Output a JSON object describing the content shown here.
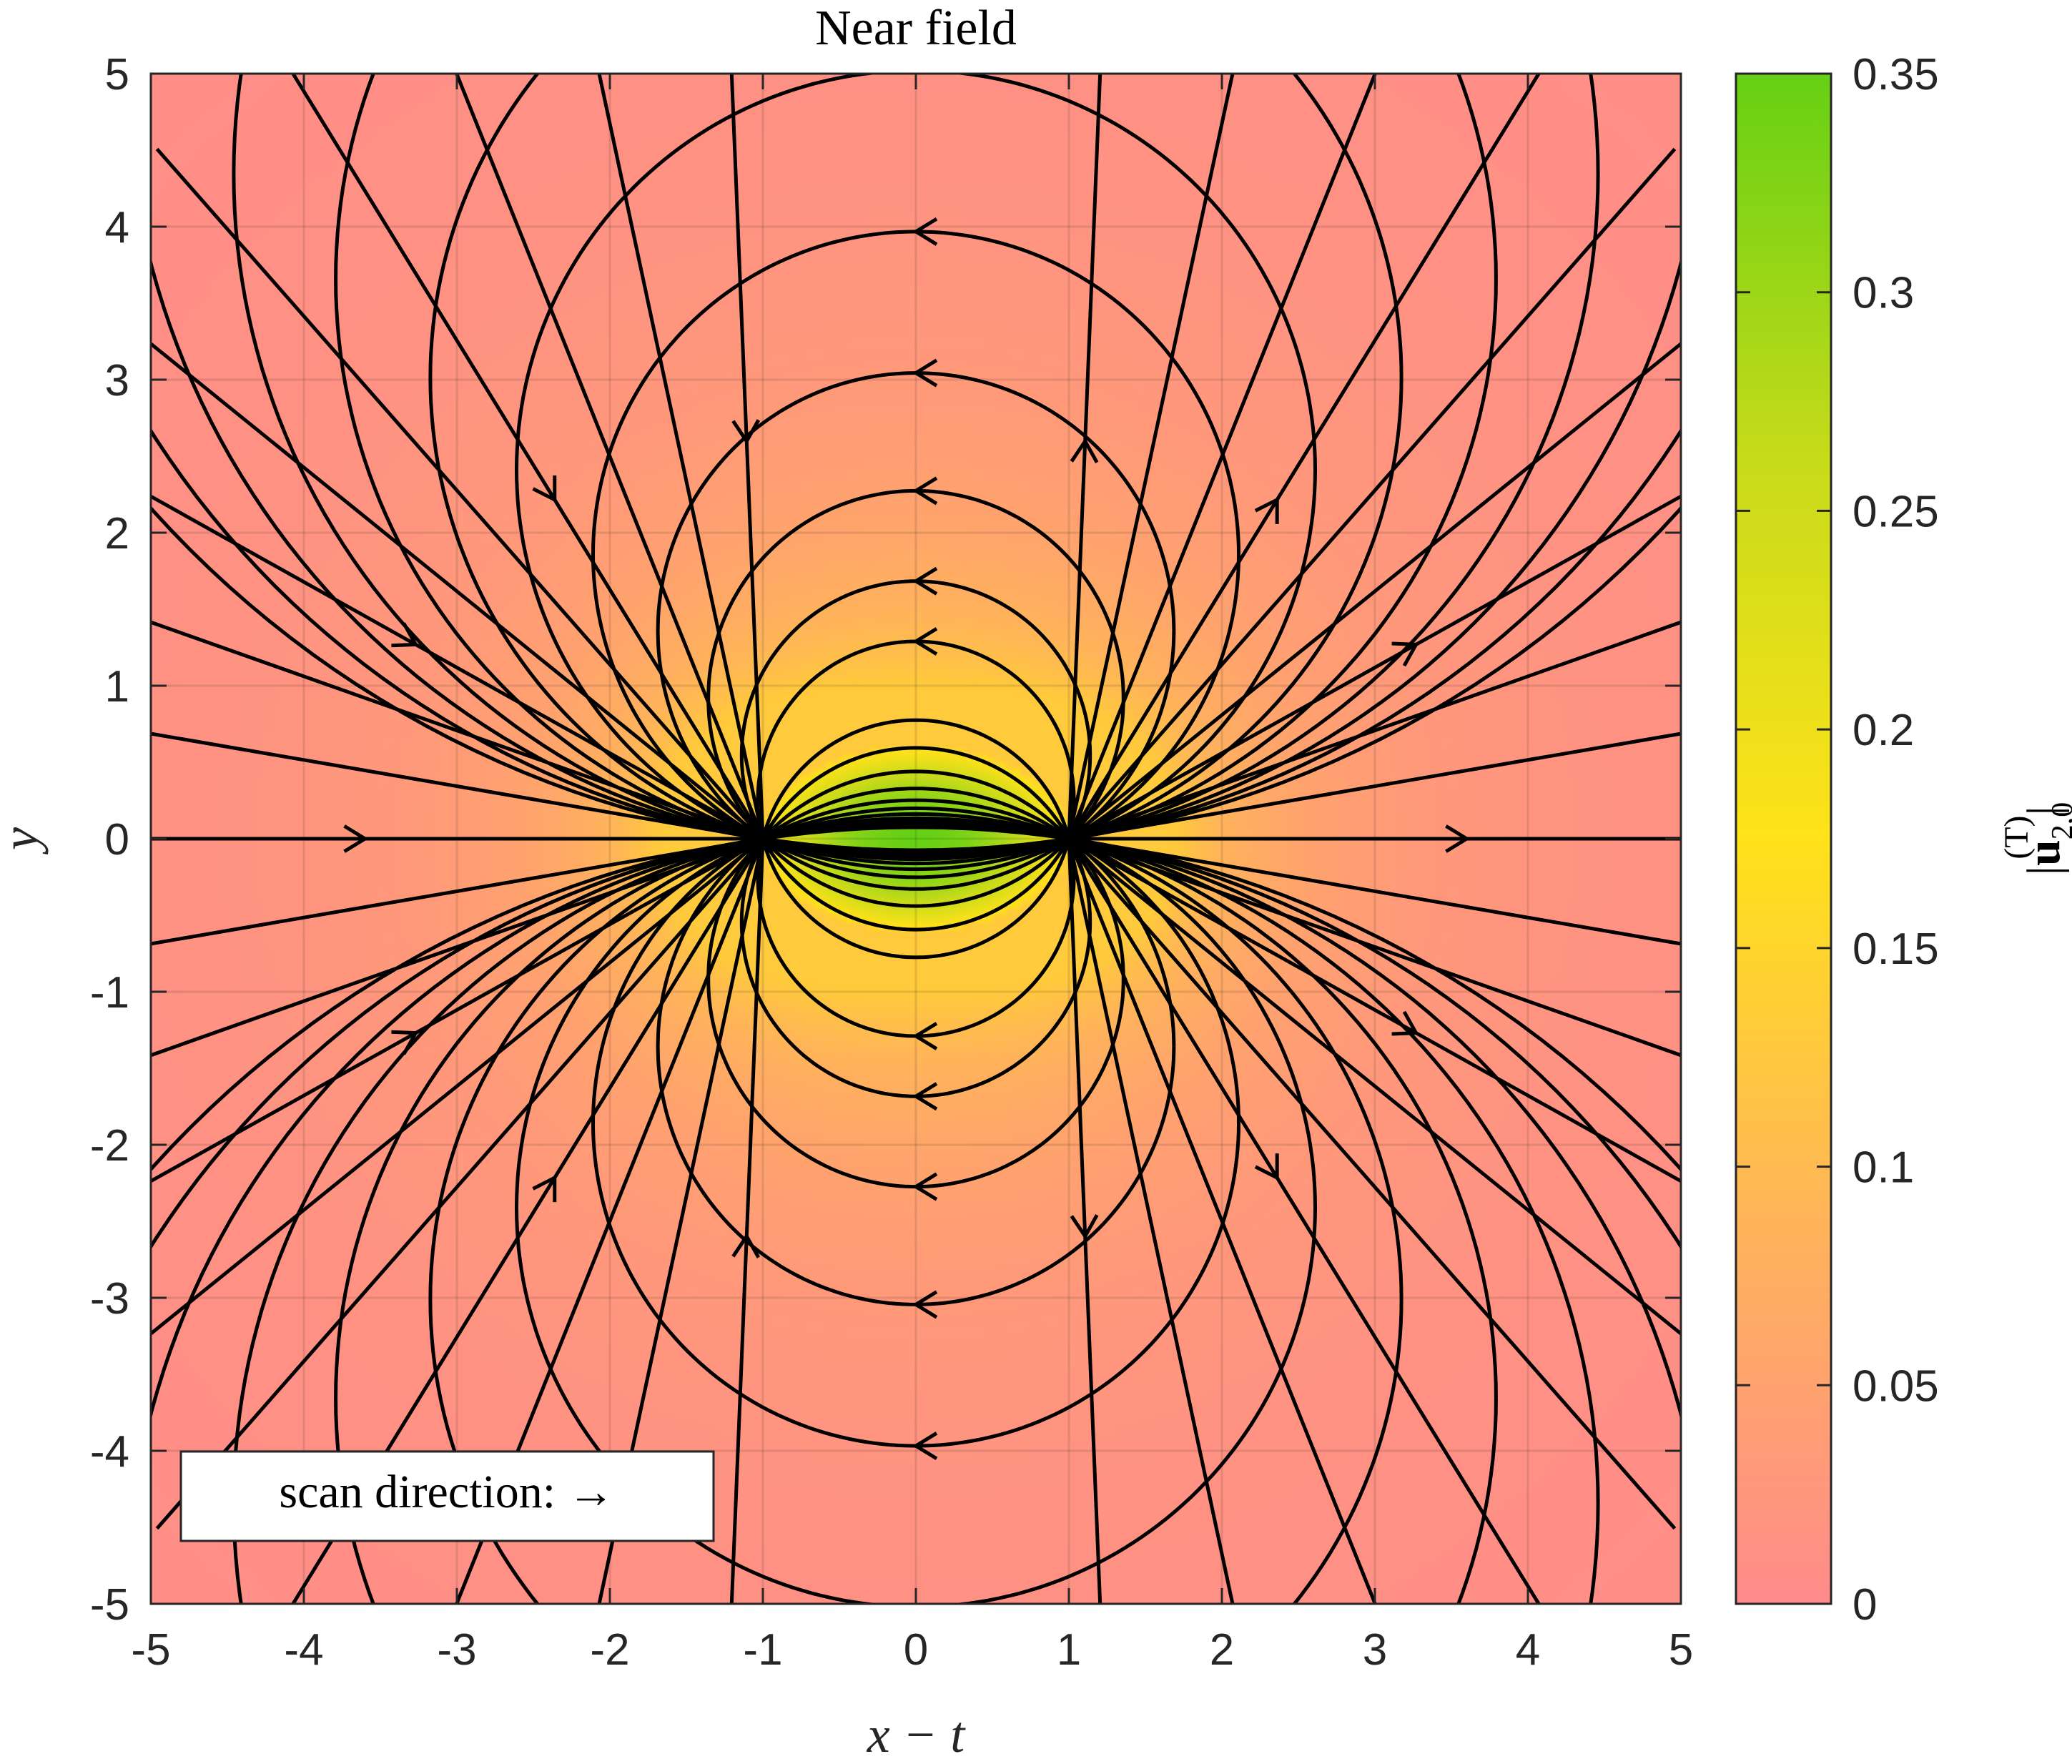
{
  "chart_data": {
    "type": "heatmap",
    "title": "Near field",
    "xlabel": "x − t",
    "ylabel": "y",
    "colorbar_label": "|u₂,₀⁽ᵀ⁾|",
    "colorbar_label_parts": {
      "prefix": "|",
      "base": "u",
      "subscript": "2,0",
      "superscript": "(T)",
      "suffix": "|"
    },
    "xlim": [
      -5,
      5
    ],
    "ylim": [
      -5,
      5
    ],
    "clim": [
      0,
      0.35
    ],
    "xticks": [
      -5,
      -4,
      -3,
      -2,
      -1,
      0,
      1,
      2,
      3,
      4,
      5
    ],
    "yticks": [
      -5,
      -4,
      -3,
      -2,
      -1,
      0,
      1,
      2,
      3,
      4,
      5
    ],
    "cticks": [
      "0",
      "0.05",
      "0.1",
      "0.15",
      "0.2",
      "0.25",
      "0.3",
      "0.35"
    ],
    "grid": true,
    "colormap": [
      "#ff8b8b",
      "#ffb45a",
      "#ffe21a",
      "#c6db1a",
      "#66d014"
    ],
    "dipole_points": [
      [
        -1,
        0
      ],
      [
        1,
        0
      ]
    ],
    "field_peak_value": 0.35,
    "streamline_color": "#000000",
    "annotation": "scan direction: →",
    "annotation_position": "bottom-left"
  }
}
